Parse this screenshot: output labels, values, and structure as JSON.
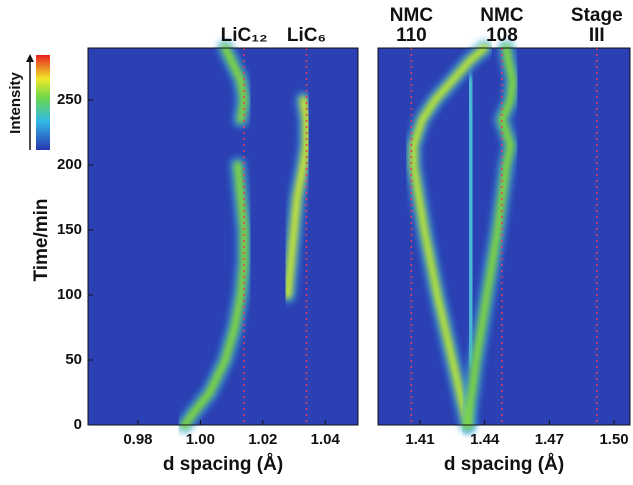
{
  "chart_data": [
    {
      "type": "line",
      "colorbar_label": "Intensity",
      "ylabel": "Time/min",
      "xlabel": "d spacing (Å)",
      "xlim": [
        0.964,
        1.0505
      ],
      "xticks": [
        0.98,
        {
          "value": 1,
          "label": "1.00"
        },
        1.02,
        1.04
      ],
      "ylim": [
        0,
        290
      ],
      "yticks": [
        0,
        50,
        100,
        150,
        200,
        250
      ],
      "annotations": [
        {
          "lines": [
            "LiC₁₂"
          ],
          "x": 1.014
        },
        {
          "lines": [
            "LiC₆"
          ],
          "x": 1.034
        }
      ],
      "y": [
        0,
        10,
        25,
        50,
        75,
        100,
        125,
        150,
        175,
        200,
        215,
        235,
        250,
        265,
        280,
        290
      ],
      "series": [
        {
          "color": "#7fd83c",
          "values": [
            0.995,
            0.998,
            1.003,
            1.008,
            1.011,
            1.013,
            1.014,
            1.014,
            1.013,
            1.012,
            null,
            1.013,
            1.014,
            1.013,
            1.01,
            1.008
          ]
        },
        {
          "color": "#c8e830",
          "values": [
            null,
            null,
            null,
            null,
            null,
            1.028,
            1.029,
            1.03,
            1.031,
            1.033,
            1.034,
            1.034,
            1.033,
            null,
            null,
            null
          ]
        }
      ]
    },
    {
      "type": "line",
      "xlabel": "d spacing (Å)",
      "xlim": [
        1.3905,
        1.5074
      ],
      "xticks": [
        1.41,
        1.44,
        1.47,
        {
          "value": 1.5,
          "label": "1.50"
        }
      ],
      "ylim": [
        0,
        290
      ],
      "annotations": [
        {
          "lines": [
            "NMC",
            "110"
          ],
          "x": 1.406
        },
        {
          "lines": [
            "NMC",
            "108"
          ],
          "x": 1.448
        },
        {
          "lines": [
            "Stage",
            "III"
          ],
          "x": 1.492
        }
      ],
      "y": [
        0,
        50,
        100,
        150,
        200,
        215,
        235,
        250,
        265,
        280,
        290
      ],
      "series": [
        {
          "color": "#b8e634",
          "values": [
            1.432,
            1.425,
            1.418,
            1.412,
            1.407,
            1.407,
            1.411,
            1.417,
            1.425,
            1.433,
            1.44
          ]
        },
        {
          "color": "#4ec8d8",
          "values": [
            null,
            1.434,
            1.434,
            1.434,
            1.434,
            1.434,
            1.434,
            1.433,
            1.433,
            null,
            null
          ]
        },
        {
          "color": "#7fd83c",
          "values": [
            1.432,
            1.436,
            1.441,
            1.446,
            1.45,
            1.452,
            1.448,
            1.452,
            1.453,
            1.451,
            1.45
          ]
        }
      ]
    }
  ]
}
